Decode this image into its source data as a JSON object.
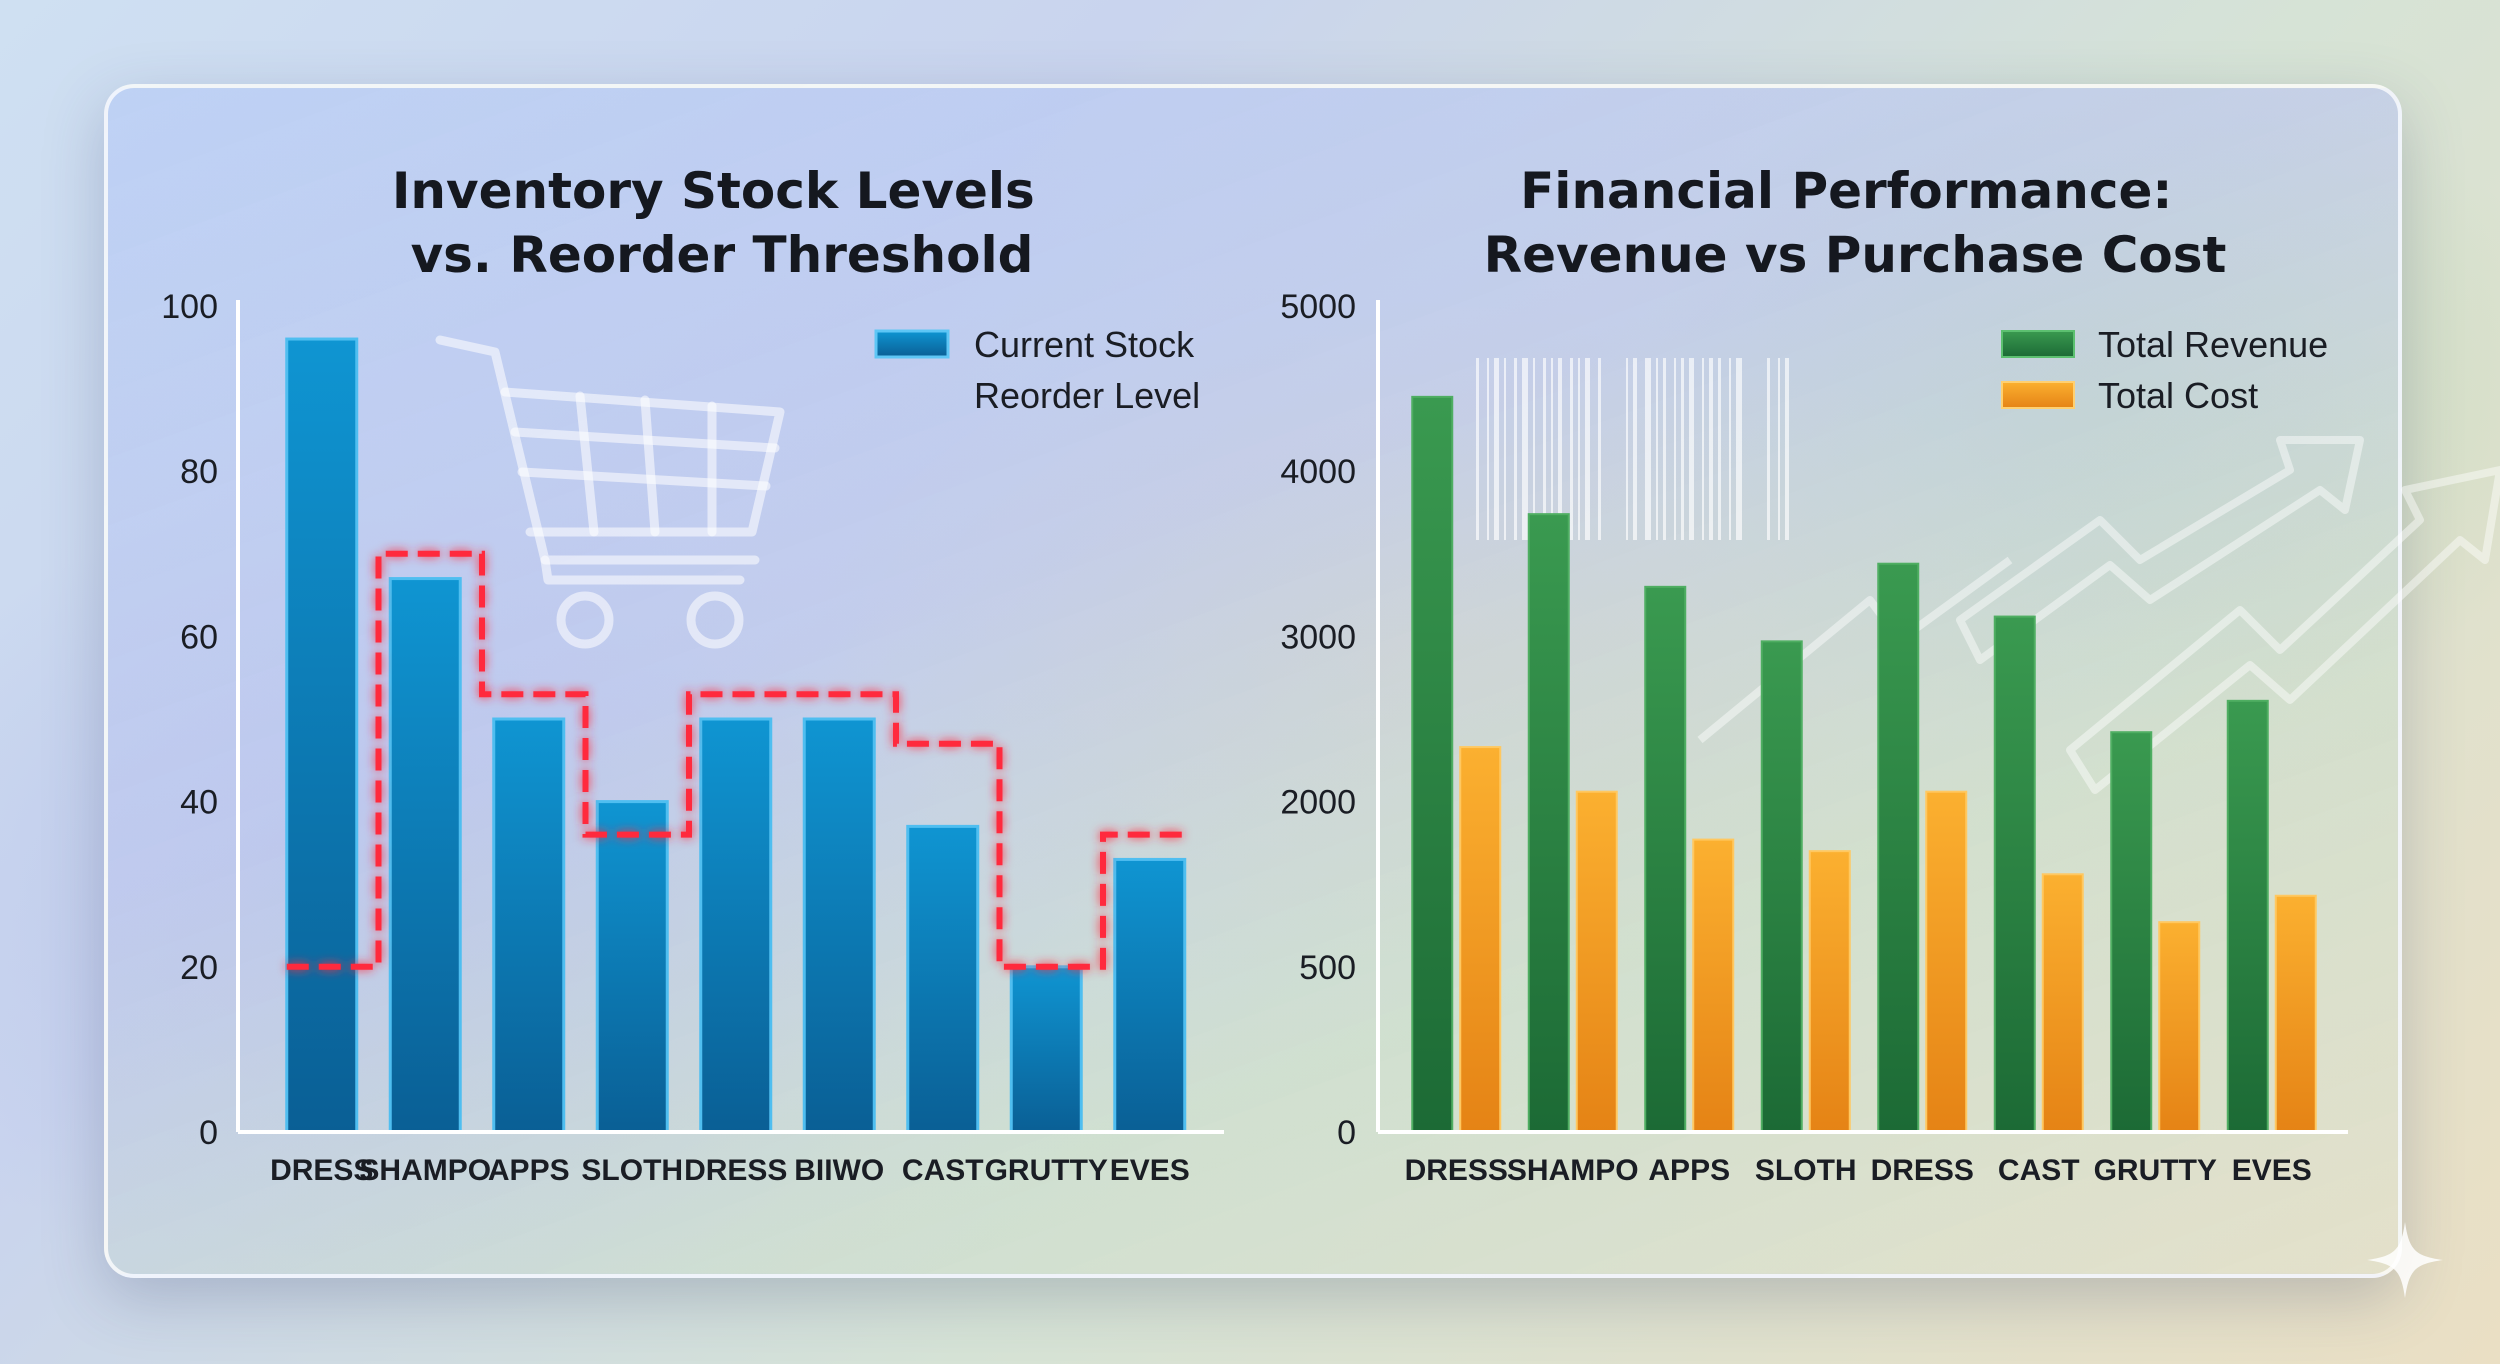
{
  "chart_data": [
    {
      "type": "bar",
      "title": "Inventory Stock Levels vs. Reorder Threshold",
      "title_lines": [
        "Inventory Stock Levels",
        "vs. Reorder Threshold"
      ],
      "categories": [
        "DRESS",
        "SHAMPO",
        "APPS",
        "SLOTH",
        "DRESS",
        "BIIWO",
        "CAST",
        "GRUTTY",
        "EVES"
      ],
      "series": [
        {
          "name": "Current Stock",
          "type": "bar",
          "color": "#0a86c4",
          "values": [
            96,
            67,
            50,
            40,
            50,
            50,
            37,
            20,
            33
          ]
        },
        {
          "name": "Reorder Level",
          "type": "step-line",
          "color": "#ff2a3c",
          "values": [
            20,
            70,
            53,
            36,
            53,
            53,
            47,
            20,
            36
          ]
        }
      ],
      "yticks": [
        "0",
        "20",
        "40",
        "60",
        "80",
        "100"
      ],
      "ylim": [
        0,
        100
      ],
      "xlabel": "",
      "ylabel": "",
      "legend": "top-right",
      "grid": false
    },
    {
      "type": "bar",
      "title": "Financial Performance: Revenue vs Purchase Cost",
      "title_lines": [
        "Financial Performance:",
        "Revenue vs Purchase Cost"
      ],
      "categories": [
        "DRESS",
        "SHAMPO",
        "APPS",
        "SLOTH",
        "DRESS",
        "CAST",
        "GRUTTY",
        "EVES"
      ],
      "series": [
        {
          "name": "Total Revenue",
          "color": "#2f8a45",
          "values": [
            4450,
            3740,
            3300,
            2970,
            3440,
            3120,
            2420,
            2610
          ]
        },
        {
          "name": "Total Cost",
          "color": "#f5a020",
          "values": [
            2330,
            2060,
            1770,
            1700,
            2060,
            1560,
            1270,
            1430
          ]
        }
      ],
      "yticks": [
        "0",
        "500",
        "2000",
        "3000",
        "4000",
        "5000"
      ],
      "ylim": [
        0,
        5000
      ],
      "xlabel": "",
      "ylabel": "",
      "legend": "top-right",
      "grid": false
    }
  ]
}
